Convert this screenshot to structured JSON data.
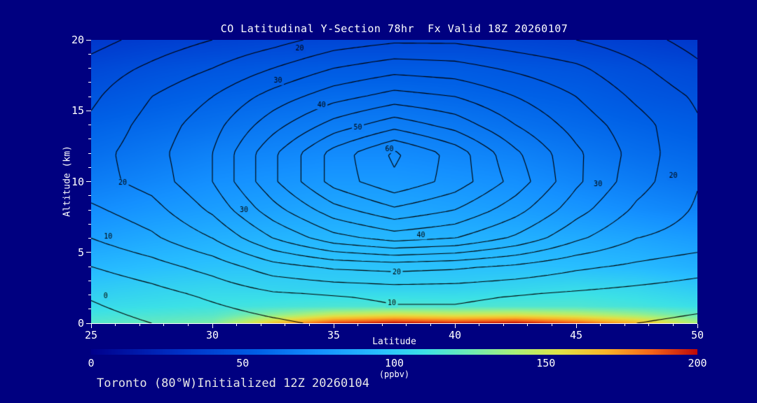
{
  "footer_text": "Toronto (80°W)Initialized 12Z 20260104",
  "colors": {
    "background": "#000080",
    "text": "#FFFFFF",
    "contour": "#000000"
  },
  "chart_data": {
    "type": "heatmap",
    "title": "CO Latitudinal Y-Section 78hr  Fx Valid 18Z 20260107",
    "xlabel": "Latitude",
    "ylabel": "Altitude (km)",
    "xlim": [
      25,
      50
    ],
    "ylim": [
      0,
      20
    ],
    "x_major_ticks": [
      25,
      30,
      35,
      40,
      45,
      50
    ],
    "x_minor_step": 1,
    "y_major_ticks": [
      0,
      5,
      10,
      15,
      20
    ],
    "y_minor_step": 1,
    "colorbar": {
      "min": 0,
      "max": 200,
      "ticks": [
        0,
        50,
        100,
        150,
        200
      ],
      "label": "(ppbv)"
    },
    "colormap": [
      [
        0,
        "#00008C"
      ],
      [
        30,
        "#0032C8"
      ],
      [
        55,
        "#0060E6"
      ],
      [
        75,
        "#1490FF"
      ],
      [
        95,
        "#28BEFF"
      ],
      [
        110,
        "#3CE1E6"
      ],
      [
        125,
        "#6EEBB4"
      ],
      [
        140,
        "#AAF078"
      ],
      [
        155,
        "#E1E146"
      ],
      [
        170,
        "#FAB428"
      ],
      [
        185,
        "#F56419"
      ],
      [
        200,
        "#BE0A0A"
      ]
    ],
    "fill_field": {
      "units": "ppbv",
      "lats": [
        25,
        27.5,
        30,
        32.5,
        35,
        37.5,
        40,
        42.5,
        45,
        47.5,
        50
      ],
      "alts": [
        0,
        0.6,
        1.2,
        2.5,
        4,
        6,
        8,
        10,
        12,
        14,
        16,
        18,
        20
      ],
      "values": [
        [
          118,
          122,
          128,
          165,
          192,
          200,
          196,
          200,
          188,
          170,
          140
        ],
        [
          112,
          115,
          118,
          132,
          148,
          154,
          150,
          152,
          146,
          136,
          122
        ],
        [
          107,
          109,
          111,
          113,
          115,
          116,
          115,
          116,
          116,
          113,
          109
        ],
        [
          100,
          103,
          105,
          104,
          103,
          103,
          103,
          105,
          107,
          105,
          100
        ],
        [
          92,
          95,
          97,
          98,
          98,
          97,
          96,
          96,
          95,
          93,
          89
        ],
        [
          82,
          86,
          89,
          91,
          92,
          92,
          90,
          89,
          87,
          84,
          80
        ],
        [
          74,
          78,
          81,
          83,
          85,
          85,
          83,
          81,
          78,
          74,
          70
        ],
        [
          67,
          71,
          75,
          77,
          79,
          79,
          77,
          75,
          71,
          67,
          63
        ],
        [
          61,
          65,
          69,
          71,
          73,
          73,
          71,
          69,
          65,
          61,
          58
        ],
        [
          56,
          59,
          62,
          65,
          67,
          67,
          65,
          62,
          59,
          56,
          53
        ],
        [
          49,
          53,
          56,
          58,
          60,
          60,
          58,
          56,
          54,
          50,
          47
        ],
        [
          42,
          46,
          49,
          51,
          52,
          52,
          52,
          50,
          48,
          45,
          42
        ],
        [
          33,
          36,
          38,
          40,
          41,
          41,
          41,
          40,
          38,
          36,
          33
        ]
      ]
    },
    "contour_field": {
      "min_level": 0,
      "max_level": 65,
      "levels_step": 5,
      "labeled_levels": [
        0,
        10,
        20,
        30,
        40,
        50,
        60
      ],
      "lats": [
        25,
        27.5,
        30,
        32.5,
        35,
        37.5,
        40,
        42.5,
        45,
        47.5,
        50
      ],
      "alts": [
        0,
        2,
        4,
        6,
        8,
        10,
        12,
        14,
        16,
        18,
        20
      ],
      "values": [
        [
          -2,
          0,
          2,
          4,
          6,
          8,
          8,
          7,
          6,
          5,
          4
        ],
        [
          0.5,
          3,
          6,
          9,
          10,
          11,
          11,
          10,
          9,
          8,
          7
        ],
        [
          5,
          8,
          12,
          18,
          21,
          22,
          21,
          19,
          16,
          14,
          12
        ],
        [
          10,
          14,
          20,
          30,
          38,
          42,
          40,
          34,
          26,
          20,
          18
        ],
        [
          14,
          18,
          26,
          38,
          48,
          54,
          50,
          42,
          32,
          24,
          19.4
        ],
        [
          18,
          22,
          30,
          44,
          57,
          64,
          58,
          48,
          36,
          27,
          20.3
        ],
        [
          18,
          23,
          30,
          44,
          57,
          66,
          58,
          46,
          36,
          28,
          20.3
        ],
        [
          16,
          22,
          28,
          38,
          47,
          53,
          48,
          40,
          33,
          27,
          20.6
        ],
        [
          14,
          20,
          25,
          32,
          38,
          42,
          40,
          35,
          30,
          24,
          19.2
        ],
        [
          12,
          16,
          20,
          25,
          30,
          33,
          32,
          29,
          26,
          21,
          16
        ],
        [
          8,
          12,
          15,
          18,
          22,
          24,
          24,
          22,
          20,
          17,
          13
        ]
      ]
    },
    "contour_labels": [
      {
        "text": "20",
        "lat": 33.6,
        "alt": 19.4
      },
      {
        "text": "30",
        "lat": 32.7,
        "alt": 17.1
      },
      {
        "text": "40",
        "lat": 34.5,
        "alt": 15.4
      },
      {
        "text": "50",
        "lat": 36.0,
        "alt": 13.8
      },
      {
        "text": "60",
        "lat": 37.3,
        "alt": 12.3
      },
      {
        "text": "20",
        "lat": 26.3,
        "alt": 9.9
      },
      {
        "text": "10",
        "lat": 25.7,
        "alt": 6.1
      },
      {
        "text": "0",
        "lat": 25.6,
        "alt": 1.9
      },
      {
        "text": "30",
        "lat": 31.3,
        "alt": 8.0
      },
      {
        "text": "30",
        "lat": 45.9,
        "alt": 9.8
      },
      {
        "text": "20",
        "lat": 49.0,
        "alt": 10.4
      },
      {
        "text": "40",
        "lat": 38.6,
        "alt": 6.2
      },
      {
        "text": "20",
        "lat": 37.6,
        "alt": 3.6
      },
      {
        "text": "10",
        "lat": 37.4,
        "alt": 1.4
      }
    ]
  }
}
